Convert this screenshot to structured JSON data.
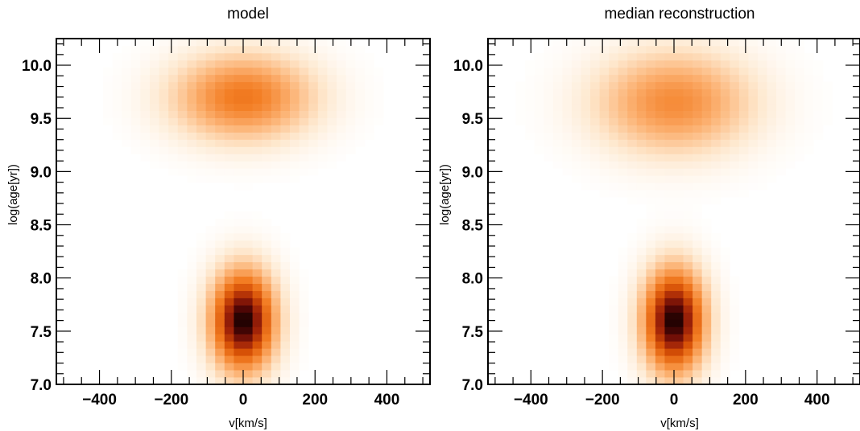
{
  "chart_data": [
    {
      "type": "heatmap",
      "title": "model",
      "xlabel": "v[km/s]",
      "ylabel": "log(age[yr])",
      "xlim": [
        -520,
        520
      ],
      "ylim": [
        7.0,
        10.25
      ],
      "xticks": [
        -400,
        -200,
        0,
        200,
        400
      ],
      "xtick_labels": [
        "−400",
        "−200",
        "0",
        "200",
        "400"
      ],
      "yticks": [
        7.0,
        7.5,
        8.0,
        8.5,
        9.0,
        9.5,
        10.0
      ],
      "ytick_labels": [
        "7.0",
        "7.5",
        "8.0",
        "8.5",
        "9.0",
        "9.5",
        "10.0"
      ],
      "colormap": "Oranges-to-dark-red (white = 0, black = max)",
      "grid": "40 velocity bins x 48 age bins",
      "components": [
        {
          "v_center": 0,
          "logage_center": 7.6,
          "v_sigma": 60,
          "logage_sigma": 0.32,
          "peak_intensity": 1.0
        },
        {
          "v_center": 0,
          "logage_center": 9.7,
          "v_sigma": 135,
          "logage_sigma": 0.28,
          "peak_intensity": 0.5
        }
      ]
    },
    {
      "type": "heatmap",
      "title": "median reconstruction",
      "xlabel": "v[km/s]",
      "ylabel": "log(age[yr])",
      "xlim": [
        -520,
        520
      ],
      "ylim": [
        7.0,
        10.25
      ],
      "xticks": [
        -400,
        -200,
        0,
        200,
        400
      ],
      "xtick_labels": [
        "−400",
        "−200",
        "0",
        "200",
        "400"
      ],
      "yticks": [
        7.0,
        7.5,
        8.0,
        8.5,
        9.0,
        9.5,
        10.0
      ],
      "ytick_labels": [
        "7.0",
        "7.5",
        "8.0",
        "8.5",
        "9.0",
        "9.5",
        "10.0"
      ],
      "colormap": "Oranges-to-dark-red (white = 0, black = max)",
      "grid": "40 velocity bins x 48 age bins",
      "components": [
        {
          "v_center": 0,
          "logage_center": 7.6,
          "v_sigma": 58,
          "logage_sigma": 0.33,
          "peak_intensity": 1.0
        },
        {
          "v_center": 0,
          "logage_center": 9.65,
          "v_sigma": 150,
          "logage_sigma": 0.33,
          "peak_intensity": 0.43
        }
      ]
    }
  ]
}
